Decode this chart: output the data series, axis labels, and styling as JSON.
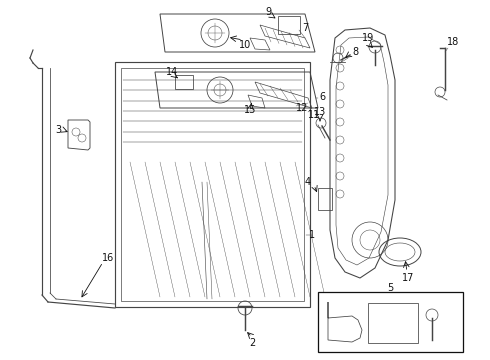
{
  "bg_color": "#ffffff",
  "fig_width": 4.9,
  "fig_height": 3.6,
  "dpi": 100,
  "gray": "#444444",
  "dark": "#111111",
  "lw": 0.7
}
